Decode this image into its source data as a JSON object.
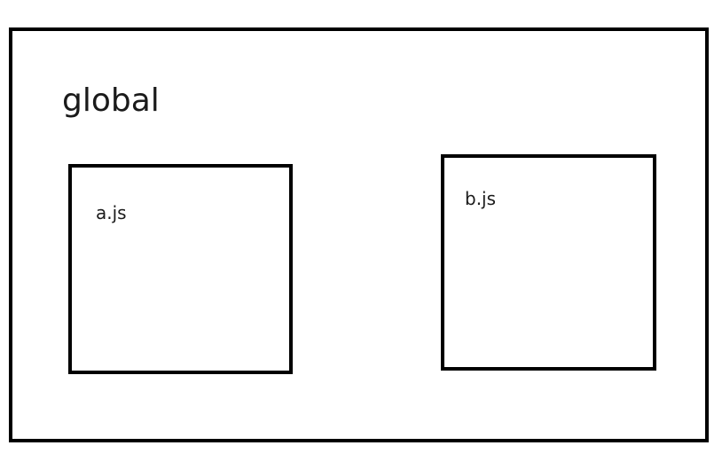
{
  "diagram": {
    "outer": {
      "label": "global"
    },
    "modules": [
      {
        "label": "a.js"
      },
      {
        "label": "b.js"
      }
    ]
  },
  "colors": {
    "stroke": "#000000",
    "text": "#1a1a1a",
    "background": "#ffffff"
  }
}
